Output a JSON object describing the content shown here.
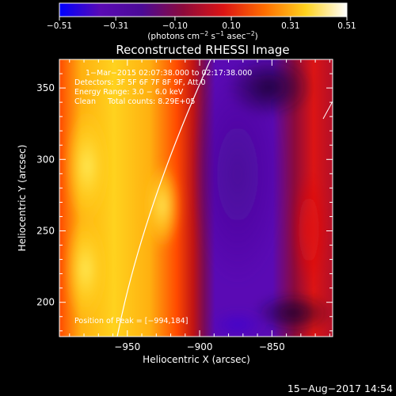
{
  "chart_data": {
    "type": "heatmap",
    "title": "Reconstructed RHESSI Image",
    "xlabel": "Heliocentric X (arcsec)",
    "ylabel": "Heliocentric Y (arcsec)",
    "xlim": [
      -997,
      -808
    ],
    "ylim": [
      176,
      370
    ],
    "x_ticks": [
      -950,
      -900,
      -850
    ],
    "x_tick_labels": [
      "−950",
      "−900",
      "−850"
    ],
    "y_ticks": [
      200,
      250,
      300,
      350
    ],
    "y_tick_labels": [
      "200",
      "250",
      "300",
      "350"
    ],
    "colorbar": {
      "min": -0.51,
      "max": 0.51,
      "ticks": [
        -0.51,
        -0.31,
        -0.1,
        0.1,
        0.31,
        0.51
      ],
      "tick_labels": [
        "−0.51",
        "−0.31",
        "−0.10",
        "0.10",
        "0.31",
        "0.51"
      ],
      "unit_label": "(photons cm",
      "unit_exp1": "−2",
      "unit_mid": " s",
      "unit_exp2": "−1",
      "unit_mid2": " asec",
      "unit_exp3": "−2",
      "unit_end": ")",
      "stops": [
        "#0000ff",
        "#5a0ab4",
        "#4b0a96",
        "#8c0a3c",
        "#dc1414",
        "#ff6e00",
        "#ffd21e",
        "#ffffff"
      ]
    },
    "annotations": [
      "1−Mar−2015 02:07:38.000 to 02:17:38.000",
      "Detectors: 3F 5F 6F 7F 8F 9F, Att 0",
      "Energy Range: 3.0 − 6.0 keV",
      "Clean     Total counts: 8.29E+05"
    ],
    "peak_label": "Position of Peak = [−994,184]",
    "grid": false,
    "legend": "none"
  },
  "footer": {
    "date": "15−Aug−2017 14:54"
  }
}
